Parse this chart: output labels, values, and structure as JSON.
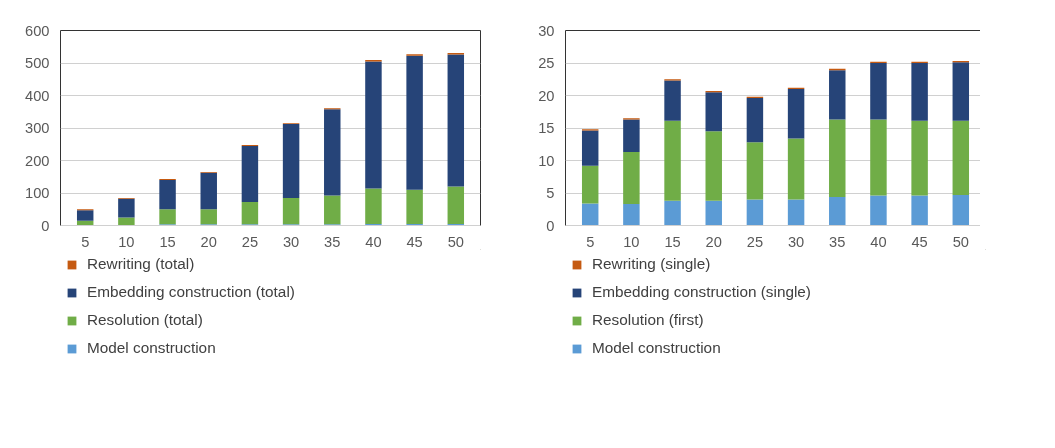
{
  "chart_data": [
    {
      "type": "bar",
      "stacked": true,
      "categories": [
        "5",
        "10",
        "15",
        "20",
        "25",
        "30",
        "35",
        "40",
        "45",
        "50"
      ],
      "ylim": [
        0,
        600
      ],
      "yticks": [
        0,
        100,
        200,
        300,
        400,
        500,
        600
      ],
      "grid": "y",
      "legend": "bottom",
      "series": [
        {
          "name": "Model construction",
          "color": "#5b9bd5",
          "values": [
            null,
            null,
            4,
            4,
            4,
            4,
            4,
            5,
            5,
            5
          ]
        },
        {
          "name": "Resolution (total)",
          "color": "#70ad47",
          "values": [
            15,
            25,
            46,
            46,
            68,
            81,
            88,
            109,
            105,
            115
          ]
        },
        {
          "name": "Embedding construction (total)",
          "color": "#264478",
          "values": [
            32,
            57,
            90,
            112,
            173,
            227,
            266,
            391,
            412,
            406
          ]
        },
        {
          "name": "Rewriting (total)",
          "color": "#c55a11",
          "values": [
            3,
            3,
            3,
            3,
            3,
            3,
            3,
            4,
            5,
            5
          ]
        }
      ]
    },
    {
      "type": "bar",
      "stacked": true,
      "categories": [
        "5",
        "10",
        "15",
        "20",
        "25",
        "30",
        "35",
        "40",
        "45",
        "50"
      ],
      "ylim": [
        0,
        30
      ],
      "yticks": [
        0,
        5,
        10,
        15,
        20,
        25,
        30
      ],
      "grid": "y",
      "legend": "bottom",
      "series": [
        {
          "name": "Model construction",
          "color": "#5b9bd5",
          "values": [
            3.4,
            3.3,
            3.8,
            3.8,
            4.0,
            4.0,
            4.4,
            4.6,
            4.6,
            4.7
          ]
        },
        {
          "name": "Resolution (first)",
          "color": "#70ad47",
          "values": [
            5.8,
            8.0,
            12.3,
            10.7,
            8.8,
            9.4,
            11.9,
            11.7,
            11.5,
            11.4
          ]
        },
        {
          "name": "Embedding construction (single)",
          "color": "#264478",
          "values": [
            5.4,
            5.0,
            6.2,
            6.0,
            6.8,
            7.6,
            7.6,
            8.7,
            8.9,
            9.0
          ]
        },
        {
          "name": "Rewriting (single)",
          "color": "#c55a11",
          "values": [
            0.2,
            0.2,
            0.2,
            0.2,
            0.2,
            0.2,
            0.2,
            0.2,
            0.2,
            0.2
          ]
        }
      ]
    }
  ]
}
